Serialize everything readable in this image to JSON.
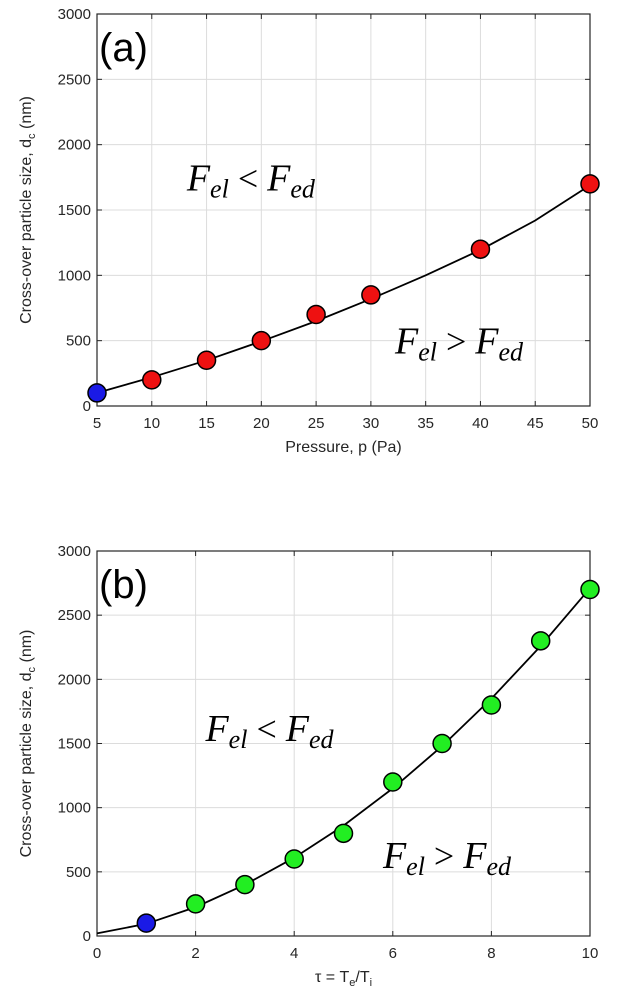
{
  "colors": {
    "red": "#ee1111",
    "blue": "#1a1ae6",
    "green": "#22ee22",
    "curve": "#000000"
  },
  "chart_data": [
    {
      "type": "scatter",
      "panel_label": "(a)",
      "xlabel": "Pressure, p (Pa)",
      "ylabel": "Cross-over particle size, d",
      "ylabel_sub": "c",
      "ylabel_unit": " (nm)",
      "xlim": [
        5,
        50
      ],
      "ylim": [
        0,
        3000
      ],
      "xticks": [
        5,
        10,
        15,
        20,
        25,
        30,
        35,
        40,
        45,
        50
      ],
      "yticks": [
        0,
        500,
        1000,
        1500,
        2000,
        2500,
        3000
      ],
      "grid": true,
      "points": [
        {
          "x": 5,
          "y": 100,
          "color": "blue"
        },
        {
          "x": 10,
          "y": 200,
          "color": "red"
        },
        {
          "x": 15,
          "y": 350,
          "color": "red"
        },
        {
          "x": 20,
          "y": 500,
          "color": "red"
        },
        {
          "x": 25,
          "y": 700,
          "color": "red"
        },
        {
          "x": 30,
          "y": 850,
          "color": "red"
        },
        {
          "x": 40,
          "y": 1200,
          "color": "red"
        },
        {
          "x": 50,
          "y": 1700,
          "color": "red"
        }
      ],
      "fit_curve": {
        "x": [
          5,
          10,
          15,
          20,
          25,
          30,
          35,
          40,
          45,
          50
        ],
        "y": [
          100,
          220,
          350,
          495,
          650,
          820,
          1000,
          1195,
          1420,
          1690
        ]
      },
      "annotations": [
        {
          "lhs": "F",
          "lhs_sub": "el",
          "op": "<",
          "rhs": "F",
          "rhs_sub": "ed",
          "x": 13.2,
          "y": 1650
        },
        {
          "lhs": "F",
          "lhs_sub": "el",
          "op": ">",
          "rhs": "F",
          "rhs_sub": "ed",
          "x": 32.2,
          "y": 400
        }
      ]
    },
    {
      "type": "scatter",
      "panel_label": "(b)",
      "xlabel": "τ = T",
      "xlabel_sub1": "e",
      "xlabel_mid": "/T",
      "xlabel_sub2": "i",
      "ylabel": "Cross-over particle size, d",
      "ylabel_sub": "c",
      "ylabel_unit": " (nm)",
      "xlim": [
        0,
        10
      ],
      "ylim": [
        0,
        3000
      ],
      "xticks": [
        0,
        2,
        4,
        6,
        8,
        10
      ],
      "yticks": [
        0,
        500,
        1000,
        1500,
        2000,
        2500,
        3000
      ],
      "grid": true,
      "points": [
        {
          "x": 1,
          "y": 100,
          "color": "blue"
        },
        {
          "x": 2,
          "y": 250,
          "color": "green"
        },
        {
          "x": 3,
          "y": 400,
          "color": "green"
        },
        {
          "x": 4,
          "y": 600,
          "color": "green"
        },
        {
          "x": 5,
          "y": 800,
          "color": "green"
        },
        {
          "x": 6,
          "y": 1200,
          "color": "green"
        },
        {
          "x": 7,
          "y": 1500,
          "color": "green"
        },
        {
          "x": 8,
          "y": 1800,
          "color": "green"
        },
        {
          "x": 9,
          "y": 2300,
          "color": "green"
        },
        {
          "x": 10,
          "y": 2700,
          "color": "green"
        }
      ],
      "fit_curve": {
        "x": [
          0,
          1,
          2,
          3,
          4,
          5,
          6,
          7,
          8,
          9,
          10
        ],
        "y": [
          20,
          95,
          225,
          400,
          610,
          860,
          1150,
          1480,
          1850,
          2260,
          2710
        ]
      },
      "annotations": [
        {
          "lhs": "F",
          "lhs_sub": "el",
          "op": "<",
          "rhs": "F",
          "rhs_sub": "ed",
          "x": 2.2,
          "y": 1520
        },
        {
          "lhs": "F",
          "lhs_sub": "el",
          "op": ">",
          "rhs": "F",
          "rhs_sub": "ed",
          "x": 5.8,
          "y": 530
        }
      ]
    }
  ]
}
